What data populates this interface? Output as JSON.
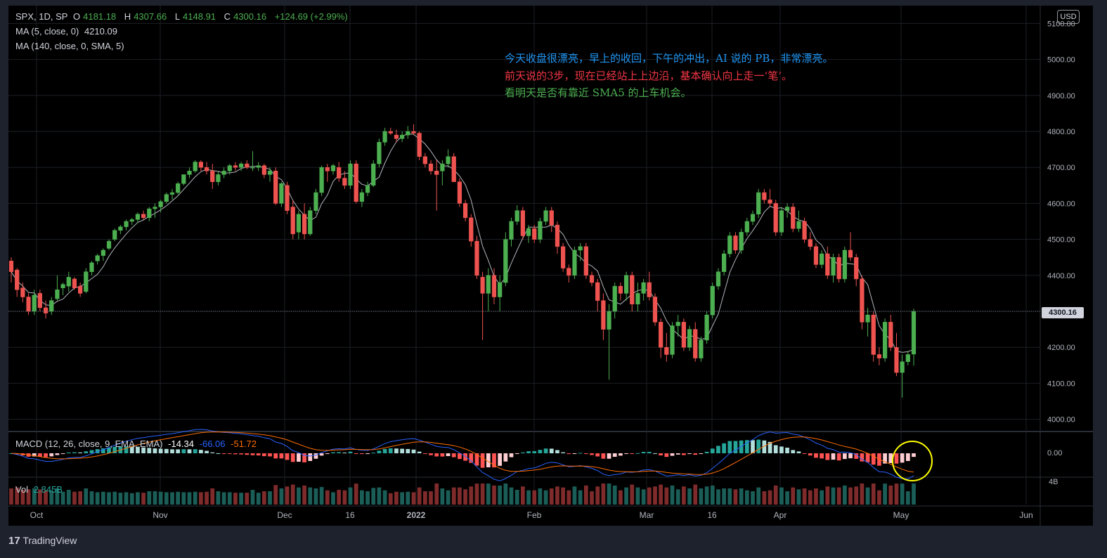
{
  "header": {
    "symbol": "SPX, 1D, SP",
    "open_label": "O",
    "open": "4181.18",
    "high_label": "H",
    "high": "4307.66",
    "low_label": "L",
    "low": "4148.91",
    "close_label": "C",
    "close": "4300.16",
    "change": "+124.69 (+2.99%)",
    "ma5_label": "MA (5, close, 0)",
    "ma5_value": "4210.09",
    "ma140_label": "MA (140, close, 0, SMA, 5)"
  },
  "notes": {
    "line1": "今天收盘很漂亮，早上的收回，下午的冲出，AI 说的  PB，非常漂亮。",
    "line2": "前天说的3步，现在已经站上上边沿，基本确认向上走一‘笔’。",
    "line3": "看明天是否有靠近 SMA5 的上车机会。",
    "line1_color": "#2196f3",
    "line2_color": "#f23645",
    "line3_color": "#4caf50"
  },
  "currency_button": "USD",
  "last_price_tag": "4300.16",
  "macd_legend": {
    "label": "MACD (12, 26, close, 9, EMA, EMA)",
    "hist": "-14.34",
    "macd": "-66.06",
    "signal": "-51.72"
  },
  "volume_legend": {
    "label": "Vol",
    "value": "2.845B"
  },
  "branding": {
    "logo_text": "17",
    "name": "TradingView"
  },
  "colors": {
    "up": "#26a69a",
    "down": "#ef5350",
    "background": "#000000",
    "ma5": "#b2b5be",
    "macd": "#2962ff",
    "signal": "#ff6d00",
    "annotation_circle": "#ffff00"
  },
  "chart_data": {
    "type": "candlestick",
    "price_axis": {
      "ticks": [
        "5100.00",
        "5000.00",
        "4900.00",
        "4800.00",
        "4700.00",
        "4600.00",
        "4500.00",
        "4400.00",
        "4300.00",
        "4200.00",
        "4100.00",
        "4000.00"
      ],
      "range": [
        3970,
        5130
      ]
    },
    "time_axis": {
      "labels": [
        "Oct",
        "Nov",
        "Dec",
        "16",
        "2022",
        "Feb",
        "Mar",
        "16",
        "Apr",
        "May",
        "Jun"
      ]
    },
    "macd_axis": {
      "ticks": [
        "0.00"
      ]
    },
    "volume_axis": {
      "ticks": [
        "4B"
      ]
    },
    "candles": [
      [
        4440,
        4450,
        4380,
        4410
      ],
      [
        4415,
        4420,
        4340,
        4360
      ],
      [
        4365,
        4380,
        4325,
        4340
      ],
      [
        4340,
        4350,
        4290,
        4300
      ],
      [
        4300,
        4360,
        4290,
        4345
      ],
      [
        4350,
        4360,
        4300,
        4310
      ],
      [
        4310,
        4330,
        4280,
        4295
      ],
      [
        4300,
        4340,
        4290,
        4330
      ],
      [
        4335,
        4400,
        4330,
        4360
      ],
      [
        4365,
        4380,
        4345,
        4375
      ],
      [
        4370,
        4410,
        4355,
        4395
      ],
      [
        4390,
        4395,
        4360,
        4365
      ],
      [
        4370,
        4380,
        4340,
        4350
      ],
      [
        4355,
        4420,
        4350,
        4410
      ],
      [
        4410,
        4440,
        4400,
        4435
      ],
      [
        4440,
        4460,
        4430,
        4455
      ],
      [
        4455,
        4475,
        4440,
        4470
      ],
      [
        4475,
        4500,
        4470,
        4495
      ],
      [
        4500,
        4530,
        4495,
        4525
      ],
      [
        4525,
        4540,
        4515,
        4535
      ],
      [
        4535,
        4555,
        4525,
        4550
      ],
      [
        4550,
        4560,
        4540,
        4555
      ],
      [
        4555,
        4575,
        4545,
        4570
      ],
      [
        4570,
        4580,
        4555,
        4560
      ],
      [
        4560,
        4590,
        4550,
        4585
      ],
      [
        4585,
        4600,
        4560,
        4590
      ],
      [
        4590,
        4610,
        4575,
        4605
      ],
      [
        4605,
        4630,
        4600,
        4625
      ],
      [
        4625,
        4640,
        4610,
        4630
      ],
      [
        4630,
        4660,
        4625,
        4655
      ],
      [
        4655,
        4680,
        4650,
        4680
      ],
      [
        4680,
        4700,
        4670,
        4690
      ],
      [
        4690,
        4720,
        4685,
        4715
      ],
      [
        4715,
        4720,
        4690,
        4700
      ],
      [
        4700,
        4715,
        4680,
        4690
      ],
      [
        4690,
        4710,
        4640,
        4660
      ],
      [
        4660,
        4690,
        4650,
        4680
      ],
      [
        4680,
        4700,
        4670,
        4690
      ],
      [
        4690,
        4710,
        4680,
        4705
      ],
      [
        4705,
        4715,
        4690,
        4700
      ],
      [
        4700,
        4715,
        4690,
        4710
      ],
      [
        4710,
        4720,
        4695,
        4700
      ],
      [
        4700,
        4745,
        4690,
        4700
      ],
      [
        4700,
        4715,
        4690,
        4705
      ],
      [
        4705,
        4710,
        4670,
        4680
      ],
      [
        4680,
        4700,
        4660,
        4690
      ],
      [
        4690,
        4700,
        4595,
        4600
      ],
      [
        4600,
        4660,
        4590,
        4655
      ],
      [
        4650,
        4660,
        4570,
        4580
      ],
      [
        4590,
        4610,
        4500,
        4515
      ],
      [
        4520,
        4580,
        4500,
        4570
      ],
      [
        4570,
        4600,
        4500,
        4515
      ],
      [
        4515,
        4590,
        4510,
        4580
      ],
      [
        4580,
        4640,
        4570,
        4630
      ],
      [
        4630,
        4705,
        4620,
        4700
      ],
      [
        4700,
        4710,
        4660,
        4690
      ],
      [
        4690,
        4710,
        4680,
        4705
      ],
      [
        4700,
        4715,
        4660,
        4670
      ],
      [
        4670,
        4690,
        4640,
        4650
      ],
      [
        4650,
        4720,
        4640,
        4710
      ],
      [
        4710,
        4720,
        4600,
        4605
      ],
      [
        4605,
        4640,
        4590,
        4630
      ],
      [
        4630,
        4660,
        4620,
        4650
      ],
      [
        4650,
        4720,
        4645,
        4710
      ],
      [
        4710,
        4780,
        4700,
        4770
      ],
      [
        4770,
        4810,
        4760,
        4800
      ],
      [
        4800,
        4810,
        4790,
        4795
      ],
      [
        4790,
        4805,
        4770,
        4780
      ],
      [
        4780,
        4800,
        4770,
        4790
      ],
      [
        4790,
        4815,
        4780,
        4800
      ],
      [
        4800,
        4820,
        4790,
        4795
      ],
      [
        4795,
        4800,
        4720,
        4730
      ],
      [
        4730,
        4740,
        4700,
        4710
      ],
      [
        4710,
        4720,
        4680,
        4690
      ],
      [
        4690,
        4720,
        4580,
        4680
      ],
      [
        4690,
        4720,
        4650,
        4710
      ],
      [
        4710,
        4750,
        4700,
        4730
      ],
      [
        4730,
        4740,
        4660,
        4660
      ],
      [
        4660,
        4670,
        4590,
        4600
      ],
      [
        4600,
        4610,
        4550,
        4560
      ],
      [
        4560,
        4570,
        4480,
        4495
      ],
      [
        4495,
        4510,
        4390,
        4400
      ],
      [
        4395,
        4410,
        4220,
        4350
      ],
      [
        4350,
        4420,
        4300,
        4400
      ],
      [
        4400,
        4420,
        4320,
        4340
      ],
      [
        4340,
        4400,
        4300,
        4380
      ],
      [
        4380,
        4520,
        4370,
        4500
      ],
      [
        4500,
        4560,
        4480,
        4550
      ],
      [
        4550,
        4595,
        4540,
        4580
      ],
      [
        4580,
        4590,
        4500,
        4510
      ],
      [
        4510,
        4540,
        4490,
        4530
      ],
      [
        4530,
        4540,
        4490,
        4500
      ],
      [
        4500,
        4560,
        4490,
        4550
      ],
      [
        4550,
        4590,
        4540,
        4580
      ],
      [
        4580,
        4590,
        4520,
        4540
      ],
      [
        4540,
        4550,
        4460,
        4480
      ],
      [
        4480,
        4490,
        4410,
        4420
      ],
      [
        4420,
        4430,
        4380,
        4400
      ],
      [
        4400,
        4480,
        4390,
        4470
      ],
      [
        4470,
        4490,
        4440,
        4480
      ],
      [
        4480,
        4490,
        4390,
        4400
      ],
      [
        4400,
        4410,
        4370,
        4380
      ],
      [
        4380,
        4390,
        4300,
        4330
      ],
      [
        4330,
        4350,
        4220,
        4250
      ],
      [
        4250,
        4320,
        4110,
        4300
      ],
      [
        4300,
        4380,
        4280,
        4370
      ],
      [
        4370,
        4380,
        4330,
        4350
      ],
      [
        4350,
        4410,
        4330,
        4400
      ],
      [
        4400,
        4410,
        4300,
        4320
      ],
      [
        4320,
        4380,
        4300,
        4350
      ],
      [
        4350,
        4390,
        4330,
        4380
      ],
      [
        4380,
        4410,
        4330,
        4340
      ],
      [
        4340,
        4350,
        4260,
        4270
      ],
      [
        4270,
        4280,
        4170,
        4200
      ],
      [
        4200,
        4240,
        4160,
        4180
      ],
      [
        4180,
        4270,
        4170,
        4260
      ],
      [
        4260,
        4290,
        4230,
        4270
      ],
      [
        4270,
        4280,
        4190,
        4200
      ],
      [
        4200,
        4260,
        4190,
        4250
      ],
      [
        4250,
        4270,
        4160,
        4170
      ],
      [
        4170,
        4230,
        4160,
        4220
      ],
      [
        4220,
        4300,
        4210,
        4290
      ],
      [
        4290,
        4380,
        4280,
        4370
      ],
      [
        4370,
        4420,
        4360,
        4410
      ],
      [
        4410,
        4470,
        4400,
        4460
      ],
      [
        4460,
        4520,
        4450,
        4510
      ],
      [
        4510,
        4520,
        4460,
        4470
      ],
      [
        4470,
        4530,
        4460,
        4520
      ],
      [
        4520,
        4560,
        4510,
        4550
      ],
      [
        4550,
        4580,
        4540,
        4570
      ],
      [
        4570,
        4640,
        4560,
        4630
      ],
      [
        4630,
        4640,
        4600,
        4610
      ],
      [
        4610,
        4640,
        4590,
        4600
      ],
      [
        4600,
        4610,
        4510,
        4520
      ],
      [
        4520,
        4590,
        4510,
        4580
      ],
      [
        4580,
        4600,
        4560,
        4590
      ],
      [
        4590,
        4600,
        4520,
        4530
      ],
      [
        4530,
        4580,
        4520,
        4550
      ],
      [
        4550,
        4560,
        4490,
        4500
      ],
      [
        4500,
        4520,
        4470,
        4480
      ],
      [
        4480,
        4490,
        4420,
        4430
      ],
      [
        4430,
        4470,
        4420,
        4460
      ],
      [
        4460,
        4480,
        4390,
        4400
      ],
      [
        4400,
        4460,
        4380,
        4450
      ],
      [
        4450,
        4460,
        4380,
        4390
      ],
      [
        4390,
        4480,
        4380,
        4470
      ],
      [
        4470,
        4520,
        4440,
        4450
      ],
      [
        4450,
        4460,
        4370,
        4390
      ],
      [
        4390,
        4400,
        4250,
        4270
      ],
      [
        4270,
        4310,
        4230,
        4290
      ],
      [
        4290,
        4300,
        4160,
        4180
      ],
      [
        4180,
        4200,
        4150,
        4170
      ],
      [
        4170,
        4280,
        4160,
        4270
      ],
      [
        4270,
        4290,
        4190,
        4200
      ],
      [
        4200,
        4240,
        4120,
        4130
      ],
      [
        4130,
        4180,
        4060,
        4160
      ],
      [
        4160,
        4190,
        4150,
        4180
      ],
      [
        4181,
        4307,
        4149,
        4300
      ]
    ]
  }
}
